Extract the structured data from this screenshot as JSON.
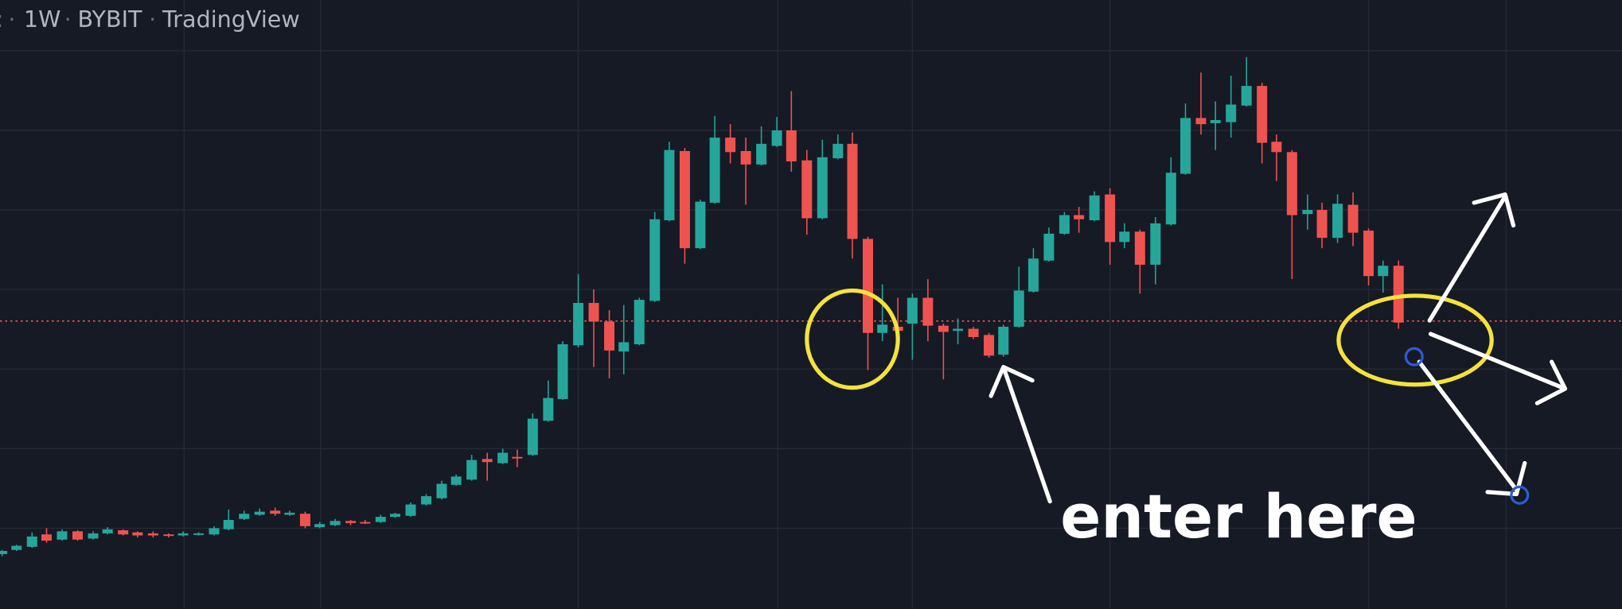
{
  "header": {
    "interval": "1W",
    "exchange": "BYBIT",
    "source": "TradingView"
  },
  "annotation": {
    "text": "enter here"
  }
}
